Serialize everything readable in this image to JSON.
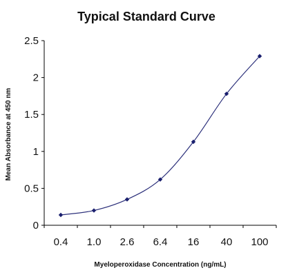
{
  "chart_data": {
    "type": "line",
    "title": "Typical Standard Curve",
    "xlabel": "Myeloperoxidase Concentration (ng/mL)",
    "ylabel": "Mean Absorbance at 450 nm",
    "x_scale": "log",
    "categories": [
      "0.4",
      "1.0",
      "2.6",
      "6.4",
      "16",
      "40",
      "100"
    ],
    "x": [
      0.4,
      1.0,
      2.6,
      6.4,
      16,
      40,
      100
    ],
    "series": [
      {
        "values": [
          0.14,
          0.2,
          0.35,
          0.62,
          1.13,
          1.78,
          2.29
        ]
      }
    ],
    "ylim": [
      0,
      2.5
    ],
    "yticks": [
      "0",
      "0.5",
      "1",
      "1.5",
      "2",
      "2.5"
    ],
    "grid": false,
    "legend": false,
    "colors": {
      "line": "#2b2f7a",
      "marker": "#1a1f6e",
      "axis": "#000000"
    }
  }
}
